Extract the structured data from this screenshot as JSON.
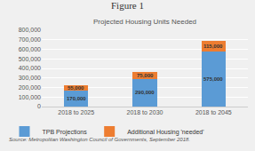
{
  "chart_data": {
    "type": "bar",
    "title": "Figure 1",
    "subtitle": "Projected Housing Units Needed",
    "categories": [
      "2018 to 2025",
      "2018 to 2030",
      "2018 to 2045"
    ],
    "series": [
      {
        "name": "TPB Projections",
        "color": "#5b9bd5",
        "values": [
          170000,
          290000,
          575000
        ],
        "value_labels": [
          "170,000",
          "290,000",
          "575,000"
        ]
      },
      {
        "name": "Additional Housing 'needed'",
        "color": "#ed7d31",
        "values": [
          55000,
          75000,
          115000
        ],
        "value_labels": [
          "55,000",
          "75,000",
          "115,000"
        ]
      }
    ],
    "stacked": true,
    "data_labels": true,
    "ylim": [
      0,
      800000
    ],
    "yticks": [
      0,
      {
        "value": 100000,
        "label": "100,000"
      },
      {
        "value": 200000,
        "label": "200,000"
      },
      {
        "value": 300000,
        "label": "300,000"
      },
      {
        "value": 400000,
        "label": "400,000"
      },
      {
        "value": 500000,
        "label": "500,000"
      },
      {
        "value": 600000,
        "label": "600,000"
      },
      {
        "value": 700000,
        "label": "700,000"
      },
      {
        "value": 800000,
        "label": "800,000"
      }
    ],
    "grid": true,
    "legend": "lower left",
    "annotations": [
      "Source: Metropolitan Washington Council of Governments, September 2018."
    ]
  }
}
